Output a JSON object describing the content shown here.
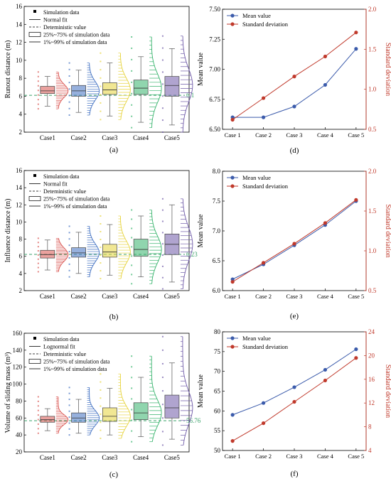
{
  "colors": {
    "case1": "#d9534f",
    "case2": "#3f6fc1",
    "case3": "#e6d33a",
    "case4": "#35b36b",
    "case5": "#6f5aa8",
    "deterministic": "#3aa26a",
    "mean": "#3b5bab",
    "std": "#c0392b"
  },
  "panels": [
    {
      "id": "a",
      "label": "(a)",
      "ylabel": "Runout distance (m)",
      "ylim": [
        2,
        16
      ],
      "yticks": [
        2,
        4,
        6,
        8,
        10,
        12,
        14,
        16
      ],
      "categories": [
        "Case1",
        "Case2",
        "Case3",
        "Case4",
        "Case5"
      ],
      "deterministic_value": 6.1,
      "deterministic_label": "6.1",
      "legend": [
        "Simulation data",
        "Normal fit",
        "Deteministic value",
        "25%~75% of simulation data",
        "1%~99% of simulation data"
      ],
      "boxes": [
        {
          "q25": 6.3,
          "median": 6.6,
          "q75": 7.1,
          "p1": 4.9,
          "p99": 8.2,
          "min": 4.6,
          "max": 8.7
        },
        {
          "q25": 6.0,
          "median": 6.6,
          "q75": 7.2,
          "p1": 4.2,
          "p99": 8.9,
          "min": 3.9,
          "max": 9.7
        },
        {
          "q25": 6.2,
          "median": 6.7,
          "q75": 7.5,
          "p1": 3.8,
          "p99": 9.7,
          "min": 3.4,
          "max": 10.8
        },
        {
          "q25": 6.2,
          "median": 6.9,
          "q75": 7.8,
          "p1": 3.1,
          "p99": 10.4,
          "min": 2.5,
          "max": 12.6
        },
        {
          "q25": 6.0,
          "median": 7.2,
          "q75": 8.2,
          "p1": 2.8,
          "p99": 11.3,
          "min": 2.0,
          "max": 12.7
        }
      ]
    },
    {
      "id": "b",
      "label": "(b)",
      "ylabel": "Influence distance (m)",
      "ylim": [
        2,
        16
      ],
      "yticks": [
        2,
        4,
        6,
        8,
        10,
        12,
        14,
        16
      ],
      "categories": [
        "Case1",
        "Case2",
        "Case3",
        "Case4",
        "Case5"
      ],
      "deterministic_value": 6.23,
      "deterministic_label": "6.23",
      "legend": [
        "Simulation data",
        "Normal fit",
        "Deteministic value",
        "25%~75% of simulation data",
        "1%~99% of simulation data"
      ],
      "boxes": [
        {
          "q25": 5.8,
          "median": 6.2,
          "q75": 6.7,
          "p1": 4.4,
          "p99": 7.9,
          "min": 4.2,
          "max": 8.1
        },
        {
          "q25": 5.9,
          "median": 6.4,
          "q75": 7.0,
          "p1": 4.0,
          "p99": 8.8,
          "min": 3.6,
          "max": 9.5
        },
        {
          "q25": 5.9,
          "median": 6.5,
          "q75": 7.4,
          "p1": 3.8,
          "p99": 9.7,
          "min": 3.4,
          "max": 10.7
        },
        {
          "q25": 6.0,
          "median": 6.8,
          "q75": 8.0,
          "p1": 3.6,
          "p99": 10.7,
          "min": 2.8,
          "max": 11.4
        },
        {
          "q25": 6.2,
          "median": 7.4,
          "q75": 8.6,
          "p1": 3.0,
          "p99": 12.0,
          "min": 2.2,
          "max": 12.7
        }
      ]
    },
    {
      "id": "c",
      "label": "(c)",
      "ylabel": "Volume of sliding mass (m³)",
      "ylim": [
        20,
        160
      ],
      "yticks": [
        20,
        40,
        60,
        80,
        100,
        120,
        140,
        160
      ],
      "categories": [
        "Case1",
        "Case2",
        "Case3",
        "Case4",
        "Case5"
      ],
      "deterministic_value": 56.76,
      "deterministic_label": "56.76",
      "legend": [
        "Simulation data",
        "Lognormal fit",
        "Deteministic value",
        "25%~75% of simulation data",
        "1%~99% of simulation data"
      ],
      "boxes": [
        {
          "q25": 55,
          "median": 58,
          "q75": 62,
          "p1": 45,
          "p99": 71,
          "min": 42,
          "max": 85
        },
        {
          "q25": 55,
          "median": 60,
          "q75": 66,
          "p1": 42,
          "p99": 82,
          "min": 40,
          "max": 96
        },
        {
          "q25": 56,
          "median": 62,
          "q75": 72,
          "p1": 40,
          "p99": 95,
          "min": 36,
          "max": 112
        },
        {
          "q25": 58,
          "median": 66,
          "q75": 78,
          "p1": 38,
          "p99": 108,
          "min": 32,
          "max": 133
        },
        {
          "q25": 60,
          "median": 72,
          "q75": 87,
          "p1": 35,
          "p99": 125,
          "min": 28,
          "max": 156
        }
      ]
    },
    {
      "id": "d",
      "label": "(d)",
      "ylabel": "Mean value",
      "ylabel2": "Standard deviation",
      "ylim": [
        6.5,
        7.5
      ],
      "yticks": [
        "6.50",
        "6.75",
        "7.00",
        "7.25",
        "7.50"
      ],
      "ylim2": [
        0.5,
        2.0
      ],
      "yticks2": [
        "0.5",
        "1.0",
        "1.5",
        "2.0"
      ],
      "categories": [
        "Case 1",
        "Case 2",
        "Case 3",
        "Case 4",
        "Case 5"
      ],
      "series": [
        {
          "name": "Mean value",
          "axis": "left",
          "values": [
            6.6,
            6.6,
            6.69,
            6.87,
            7.17
          ]
        },
        {
          "name": "Standard deviation",
          "axis": "right",
          "values": [
            0.62,
            0.89,
            1.16,
            1.41,
            1.71
          ]
        }
      ]
    },
    {
      "id": "e",
      "label": "(e)",
      "ylabel": "Mean value",
      "ylabel2": "Standard deviation",
      "ylim": [
        6.0,
        8.0
      ],
      "yticks": [
        "6.0",
        "6.5",
        "7.0",
        "7.5",
        "8.0"
      ],
      "ylim2": [
        0.5,
        2.0
      ],
      "yticks2": [
        "0.5",
        "1.0",
        "1.5",
        "2.0"
      ],
      "categories": [
        "Case 1",
        "Case 2",
        "Case 3",
        "Case 4",
        "Case 5"
      ],
      "series": [
        {
          "name": "Mean value",
          "axis": "left",
          "values": [
            6.19,
            6.44,
            6.76,
            7.1,
            7.5
          ]
        },
        {
          "name": "Standard deviation",
          "axis": "right",
          "values": [
            0.61,
            0.85,
            1.09,
            1.35,
            1.64
          ]
        }
      ]
    },
    {
      "id": "f",
      "label": "(f)",
      "ylabel": "Mean value",
      "ylabel2": "Standard deviation",
      "ylim": [
        50,
        80
      ],
      "yticks": [
        "50",
        "55",
        "60",
        "65",
        "70",
        "75",
        "80"
      ],
      "ylim2": [
        4,
        24
      ],
      "yticks2": [
        "4",
        "8",
        "12",
        "16",
        "20",
        "24"
      ],
      "categories": [
        "Case 1",
        "Case 2",
        "Case 3",
        "Case 4",
        "Case 5"
      ],
      "series": [
        {
          "name": "Mean value",
          "axis": "left",
          "values": [
            59.0,
            62.0,
            66.0,
            70.4,
            75.6
          ]
        },
        {
          "name": "Standard deviation",
          "axis": "right",
          "values": [
            5.6,
            8.6,
            12.2,
            15.8,
            19.6
          ]
        }
      ]
    }
  ],
  "chart_data": [
    {
      "type": "box",
      "categories": [
        "Case1",
        "Case2",
        "Case3",
        "Case4",
        "Case5"
      ],
      "ylabel": "Runout distance (m)",
      "ylim": [
        2,
        16
      ],
      "reference": 6.1
    },
    {
      "type": "box",
      "categories": [
        "Case1",
        "Case2",
        "Case3",
        "Case4",
        "Case5"
      ],
      "ylabel": "Influence distance (m)",
      "ylim": [
        2,
        16
      ],
      "reference": 6.23
    },
    {
      "type": "box",
      "categories": [
        "Case1",
        "Case2",
        "Case3",
        "Case4",
        "Case5"
      ],
      "ylabel": "Volume of sliding mass (m³)",
      "ylim": [
        20,
        160
      ],
      "reference": 56.76
    },
    {
      "type": "line",
      "categories": [
        "Case 1",
        "Case 2",
        "Case 3",
        "Case 4",
        "Case 5"
      ],
      "series": [
        {
          "name": "Mean value",
          "values": [
            6.6,
            6.6,
            6.69,
            6.87,
            7.17
          ]
        },
        {
          "name": "Standard deviation",
          "values": [
            0.62,
            0.89,
            1.16,
            1.41,
            1.71
          ]
        }
      ],
      "ylim": [
        6.5,
        7.5
      ],
      "ylim2": [
        0.5,
        2.0
      ]
    },
    {
      "type": "line",
      "categories": [
        "Case 1",
        "Case 2",
        "Case 3",
        "Case 4",
        "Case 5"
      ],
      "series": [
        {
          "name": "Mean value",
          "values": [
            6.19,
            6.44,
            6.76,
            7.1,
            7.5
          ]
        },
        {
          "name": "Standard deviation",
          "values": [
            0.61,
            0.85,
            1.09,
            1.35,
            1.64
          ]
        }
      ],
      "ylim": [
        6.0,
        8.0
      ],
      "ylim2": [
        0.5,
        2.0
      ]
    },
    {
      "type": "line",
      "categories": [
        "Case 1",
        "Case 2",
        "Case 3",
        "Case 4",
        "Case 5"
      ],
      "series": [
        {
          "name": "Mean value",
          "values": [
            59.0,
            62.0,
            66.0,
            70.4,
            75.6
          ]
        },
        {
          "name": "Standard deviation",
          "values": [
            5.6,
            8.6,
            12.2,
            15.8,
            19.6
          ]
        }
      ],
      "ylim": [
        50,
        80
      ],
      "ylim2": [
        4,
        24
      ]
    }
  ]
}
